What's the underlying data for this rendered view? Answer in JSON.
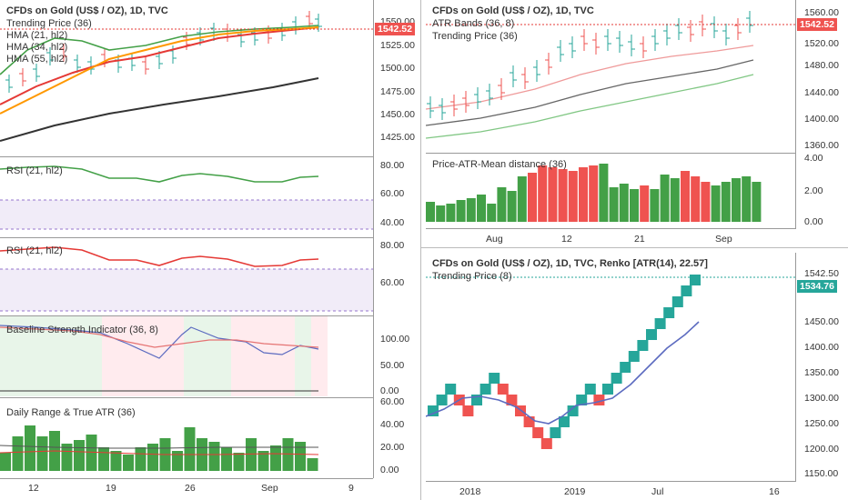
{
  "left": {
    "main": {
      "title": "CFDs on Gold (US$ / OZ), 1D, TVC",
      "legend": [
        "Trending Price (36)",
        "HMA (21, hl2)",
        "HMA (34, hl2)",
        "HMA (55, hl2)"
      ],
      "ticks": [
        "1550.00",
        "1525.00",
        "1500.00",
        "1475.00",
        "1450.00",
        "1425.00"
      ],
      "price_tag": "1542.52"
    },
    "rsi1": {
      "label": "RSI (21, hl2)",
      "ticks": [
        "80.00",
        "60.00",
        "40.00"
      ]
    },
    "rsi2": {
      "label": "RSI (21, hl2)",
      "ticks": [
        "80.00",
        "60.00"
      ]
    },
    "bsi": {
      "label": "Baseline Strength Indicator (36, 8)",
      "ticks": [
        "100.00",
        "50.00",
        "0.00"
      ]
    },
    "dr": {
      "label": "Daily Range & True ATR (36)",
      "ticks": [
        "60.00",
        "40.00",
        "20.00",
        "0.00"
      ]
    },
    "xaxis": [
      "12",
      "19",
      "26",
      "Sep",
      "9"
    ]
  },
  "right_top": {
    "main": {
      "title": "CFDs on Gold (US$ / OZ), 1D, TVC",
      "legend": [
        "ATR Bands (36, 8)",
        "Trending Price (36)"
      ],
      "ticks": [
        "1560.00",
        "1520.00",
        "1480.00",
        "1440.00",
        "1400.00",
        "1360.00"
      ],
      "price_tag": "1542.52"
    },
    "pam": {
      "label": "Price-ATR-Mean distance (36)",
      "ticks": [
        "4.00",
        "2.00",
        "0.00"
      ]
    },
    "xaxis": [
      "Aug",
      "12",
      "21",
      "Sep"
    ]
  },
  "right_bottom": {
    "title": "CFDs on Gold (US$ / OZ), 1D, TVC, Renko [ATR(14), 22.57]",
    "legend": [
      "Trending Price (8)"
    ],
    "ticks": [
      "1542.50",
      "1450.00",
      "1400.00",
      "1350.00",
      "1300.00",
      "1250.00",
      "1200.00",
      "1150.00"
    ],
    "price_tag": "1534.76",
    "xaxis": [
      "2018",
      "2019",
      "Jul",
      "16"
    ]
  },
  "colors": {
    "up": "#26a69a",
    "down": "#ef5350",
    "green_bar": "#43a047",
    "red_bar": "#ef5350"
  }
}
